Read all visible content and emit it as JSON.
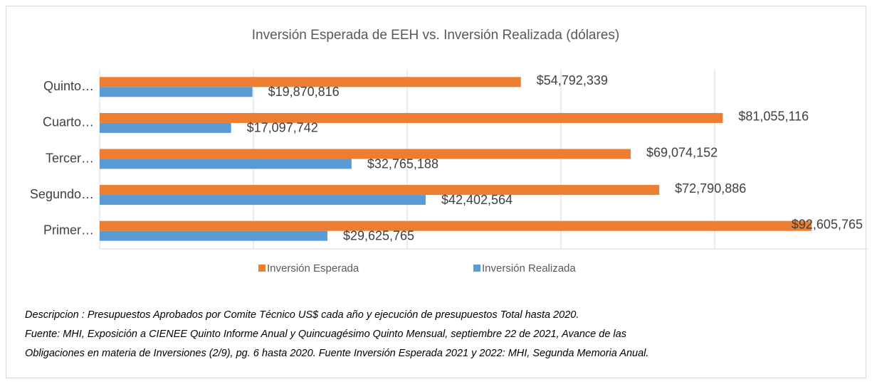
{
  "chart_data": {
    "type": "bar",
    "orientation": "horizontal",
    "title": "Inversión Esperada de EEH vs. Inversión Realizada (dólares)",
    "categories": [
      "Primer…",
      "Segundo…",
      "Tercer…",
      "Cuarto…",
      "Quinto…"
    ],
    "series": [
      {
        "name": "Inversión Esperada",
        "color": "#ed7d31",
        "values": [
          92605765,
          72790886,
          69074152,
          81055116,
          54792339
        ],
        "value_labels": [
          "$92,605,765",
          "$72,790,886",
          "$69,074,152",
          "$81,055,116",
          "$54,792,339"
        ]
      },
      {
        "name": "Inversión Realizada",
        "color": "#5b9bd5",
        "values": [
          29625765,
          42402564,
          32765188,
          17097742,
          19870816
        ],
        "value_labels": [
          "$29,625,765",
          "$42,402,564",
          "$32,765,188",
          "$17,097,742",
          "$19,870,816"
        ]
      }
    ],
    "xlim": [
      0,
      100000000
    ],
    "xticks": [
      0,
      20000000,
      40000000,
      60000000,
      80000000
    ],
    "grid": true,
    "legend": "bottom",
    "notes": [
      "Descripcion : Presupuestos Aprobados por Comite Técnico US$ cada año y ejecución de presupuestos Total hasta 2020.",
      "Fuente: MHI, Exposición a CIENEE Quinto Informe Anual y Quincuagésimo Quinto Mensual, septiembre 22 de 2021, Avance de las",
      "Obligaciones en materia de Inversiones (2/9), pg. 6 hasta 2020. Fuente Inversión Esperada 2021 y 2022: MHI, Segunda Memoria Anual."
    ]
  }
}
